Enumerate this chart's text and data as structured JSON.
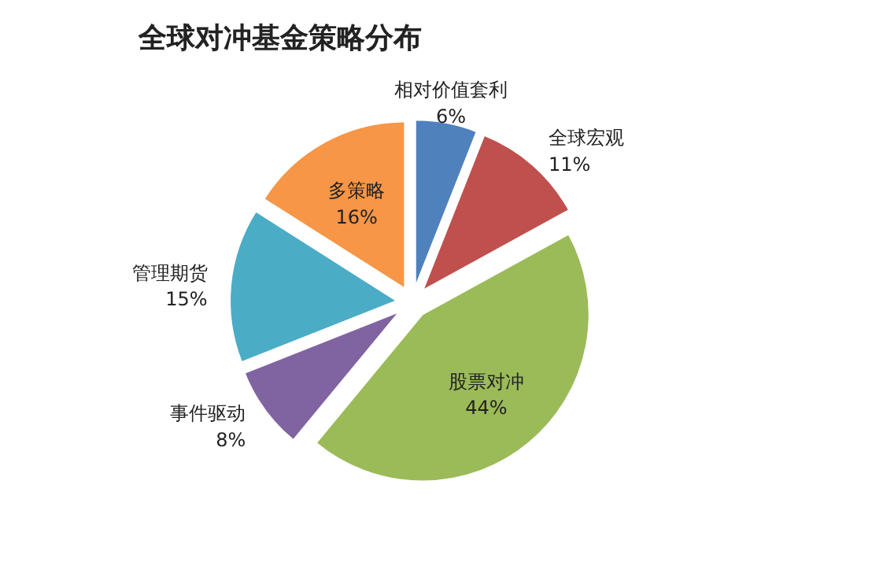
{
  "chart_data": {
    "type": "pie",
    "title": "全球对冲基金策略分布",
    "categories": [
      "相对价值套利",
      "全球宏观",
      "股票对冲",
      "事件驱动",
      "管理期货",
      "多策略"
    ],
    "values": [
      6,
      11,
      44,
      8,
      15,
      16
    ],
    "colors": [
      "#4f81bd",
      "#c0504d",
      "#9bbb59",
      "#8064a2",
      "#4bacc6",
      "#f79646"
    ],
    "value_labels": [
      "6%",
      "11%",
      "44%",
      "8%",
      "15%",
      "16%"
    ]
  }
}
